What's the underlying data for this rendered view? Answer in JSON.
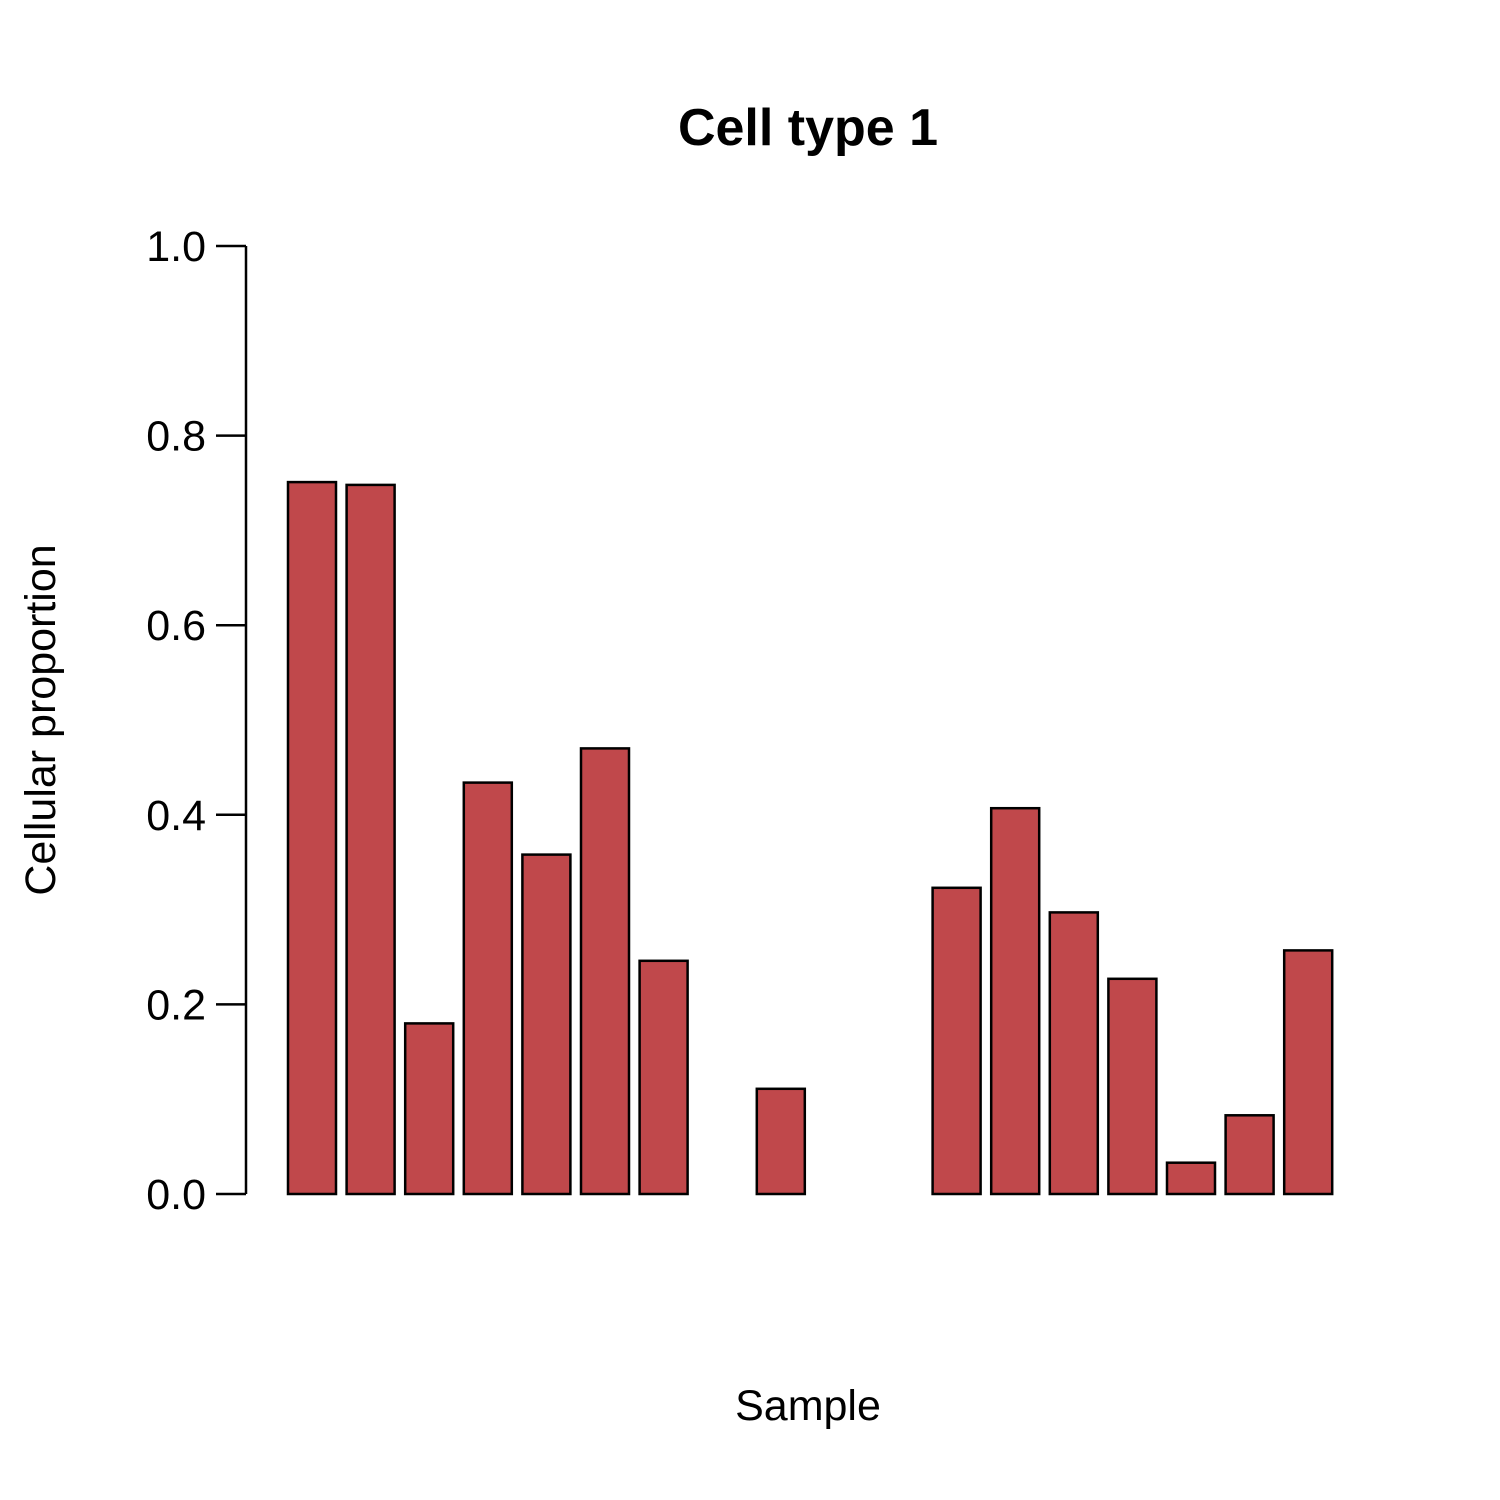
{
  "chart_data": {
    "type": "bar",
    "title": "Cell type 1",
    "xlabel": "Sample",
    "ylabel": "Cellular proportion",
    "ylim": [
      0,
      1
    ],
    "yticks": [
      "0.0",
      "0.2",
      "0.4",
      "0.6",
      "0.8",
      "1.0"
    ],
    "values": [
      0.751,
      0.748,
      0.18,
      0.434,
      0.358,
      0.47,
      0.246,
      0.0,
      0.111,
      0.0,
      0.0,
      0.323,
      0.407,
      0.297,
      0.227,
      0.033,
      0.083,
      0.257
    ],
    "bar_color": "#c0484b",
    "bar_edge_color": "#000000",
    "grid": false,
    "legend": "none"
  }
}
